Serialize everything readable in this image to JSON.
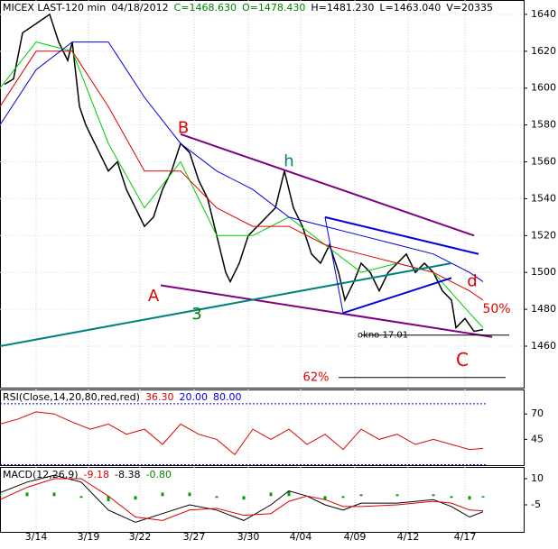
{
  "chart_data": [
    {
      "type": "line",
      "header": [
        {
          "text": "MICEX LAST-120 min",
          "color": "#000000"
        },
        {
          "text": "04/18/2012",
          "color": "#000000"
        },
        {
          "text": "C=1468.630",
          "color": "#008000"
        },
        {
          "text": "O=1478.430",
          "color": "#008000"
        },
        {
          "text": "H=1481.230",
          "color": "#000000"
        },
        {
          "text": "L=1463.040",
          "color": "#000000"
        },
        {
          "text": "V=20335",
          "color": "#000000"
        }
      ],
      "xlim": [
        0,
        145
      ],
      "xticks": [
        {
          "value": 10,
          "label": "3/14"
        },
        {
          "value": 24.5,
          "label": "3/19"
        },
        {
          "value": 38.75,
          "label": "3/22"
        },
        {
          "value": 53.75,
          "label": "3/27"
        },
        {
          "value": 68.75,
          "label": "3/30"
        },
        {
          "value": 83.25,
          "label": "4/04"
        },
        {
          "value": 98.25,
          "label": "4/09"
        },
        {
          "value": 113,
          "label": "4/12"
        },
        {
          "value": 128.75,
          "label": "4/17"
        }
      ],
      "ylim": [
        1437.5,
        1647.8
      ],
      "yticks": [
        1460,
        1480,
        1500,
        1520,
        1540,
        1560,
        1580,
        1600,
        1620,
        1640
      ],
      "grid": true,
      "series": [
        {
          "name": "price",
          "color": "#000000",
          "x": [
            1.25,
            3.75,
            6.25,
            10,
            13.75,
            16.25,
            18.75,
            20,
            22,
            23.75,
            25,
            27.5,
            30,
            32.5,
            35,
            37.5,
            40,
            42.5,
            45,
            47.5,
            50,
            52.5,
            55,
            57.5,
            60,
            62.5,
            63.75,
            66.25,
            68.75,
            71.25,
            73.75,
            76.25,
            78.75,
            81.25,
            83.75,
            86.25,
            88.75,
            91.25,
            93.75,
            95.5,
            98,
            100,
            102.5,
            105,
            107.5,
            110,
            112.5,
            115,
            117.5,
            120,
            122.5,
            125,
            126.25,
            128.75,
            131.25,
            133.75
          ],
          "values": [
            1602,
            1605,
            1630,
            1635,
            1640,
            1625,
            1615,
            1625,
            1590,
            1580,
            1575,
            1565,
            1555,
            1560,
            1545,
            1535,
            1525,
            1530,
            1545,
            1555,
            1570,
            1565,
            1550,
            1540,
            1520,
            1500,
            1495,
            1505,
            1520,
            1525,
            1530,
            1535,
            1555,
            1535,
            1525,
            1510,
            1505,
            1515,
            1500,
            1485,
            1495,
            1505,
            1500,
            1490,
            1500,
            1505,
            1510,
            1500,
            1505,
            1500,
            1490,
            1485,
            1470,
            1475,
            1468,
            1469
          ]
        },
        {
          "name": "ma-fast",
          "color": "#00cc00",
          "x": [
            0,
            10,
            20,
            30,
            40,
            50,
            60,
            70,
            80,
            90,
            100,
            110,
            120,
            130,
            133.75
          ],
          "values": [
            1600,
            1625,
            1620,
            1570,
            1535,
            1560,
            1520,
            1520,
            1530,
            1515,
            1500,
            1505,
            1500,
            1478,
            1470
          ]
        },
        {
          "name": "ma-mid",
          "color": "#e00000",
          "x": [
            0,
            10,
            20,
            30,
            40,
            50,
            60,
            70,
            80,
            90,
            100,
            110,
            120,
            130,
            133.75
          ],
          "values": [
            1590,
            1620,
            1620,
            1590,
            1555,
            1555,
            1535,
            1525,
            1525,
            1515,
            1510,
            1505,
            1500,
            1490,
            1485
          ]
        },
        {
          "name": "ma-slow",
          "color": "#0000e0",
          "x": [
            0,
            10,
            20,
            30,
            40,
            50,
            60,
            70,
            80,
            90,
            100,
            110,
            120,
            130,
            133.75
          ],
          "values": [
            1580,
            1610,
            1625,
            1625,
            1595,
            1570,
            1555,
            1545,
            1530,
            1525,
            1520,
            1515,
            1510,
            1500,
            1495
          ]
        }
      ],
      "annotations": [
        {
          "text": "A",
          "color": "#e00000"
        },
        {
          "text": "B",
          "color": "#e00000"
        },
        {
          "text": "3",
          "color": "#008000"
        },
        {
          "text": "h",
          "color": "#008080"
        },
        {
          "text": "d",
          "color": "#e00000"
        },
        {
          "text": "50%",
          "color": "#e00000"
        },
        {
          "text": "C",
          "color": "#e00000"
        },
        {
          "text": "62%",
          "color": "#e00000"
        },
        {
          "text": "okno 17.01",
          "color": "#000000"
        }
      ]
    },
    {
      "type": "line",
      "header": [
        {
          "text": "RSI(Close,14,20,80,red,red)",
          "color": "#000000"
        },
        {
          "text": "36.30",
          "color": "#e00000"
        },
        {
          "text": "20.00",
          "color": "#0000e0"
        },
        {
          "text": "80.00",
          "color": "#0000e0"
        }
      ],
      "levels": [
        20,
        80
      ],
      "level_color": "#0000e0",
      "xlim": [
        0,
        145
      ],
      "ylim": [
        19.6,
        94.1
      ],
      "yticks": [
        45,
        70
      ],
      "series": [
        {
          "name": "RSI",
          "color": "#e00000",
          "x": [
            0,
            5,
            10,
            15,
            20,
            25,
            30,
            35,
            40,
            45,
            50,
            55,
            60,
            65,
            70,
            75,
            80,
            85,
            90,
            95,
            100,
            105,
            110,
            115,
            120,
            125,
            130,
            133.75
          ],
          "values": [
            60,
            65,
            72,
            70,
            62,
            55,
            60,
            50,
            55,
            40,
            60,
            50,
            45,
            30,
            55,
            45,
            55,
            40,
            50,
            35,
            55,
            45,
            50,
            40,
            45,
            40,
            35,
            36
          ]
        }
      ]
    },
    {
      "type": "line",
      "header": [
        {
          "text": "MACD(12,26,9)",
          "color": "#000000"
        },
        {
          "text": "-9.18",
          "color": "#e00000"
        },
        {
          "text": "-8.38",
          "color": "#000000"
        },
        {
          "text": "-0.80",
          "color": "#008000"
        }
      ],
      "xlim": [
        0,
        145
      ],
      "ylim": [
        -20.5,
        16.7
      ],
      "yticks": [
        -5,
        10
      ],
      "x": [
        0,
        7.5,
        15,
        22.5,
        30,
        37.5,
        45,
        52.5,
        60,
        67.5,
        75,
        80,
        85,
        90,
        95,
        100,
        110,
        120,
        125,
        130,
        133.75
      ],
      "series": [
        {
          "name": "MACD",
          "color": "#000000",
          "values": [
            2,
            8,
            12,
            8,
            -8,
            -15,
            -10,
            -5,
            -8,
            -14,
            -5,
            3,
            0,
            -5,
            -8,
            -4,
            -4,
            -2,
            -6,
            -12,
            -9
          ]
        },
        {
          "name": "signal",
          "color": "#e00000",
          "values": [
            -2,
            5,
            10,
            10,
            0,
            -12,
            -14,
            -8,
            -7,
            -11,
            -10,
            -3,
            0,
            -2,
            -6,
            -6,
            -5,
            -3,
            -4,
            -8,
            -8.4
          ]
        }
      ],
      "histogram": {
        "name": "histogram",
        "color": "#00a000",
        "values": [
          1,
          2,
          2,
          -1,
          -3,
          -2,
          2,
          2,
          -1,
          -2,
          2,
          3,
          0,
          -2,
          -1,
          1,
          1,
          1,
          -1,
          -2,
          -0.8
        ]
      }
    }
  ]
}
